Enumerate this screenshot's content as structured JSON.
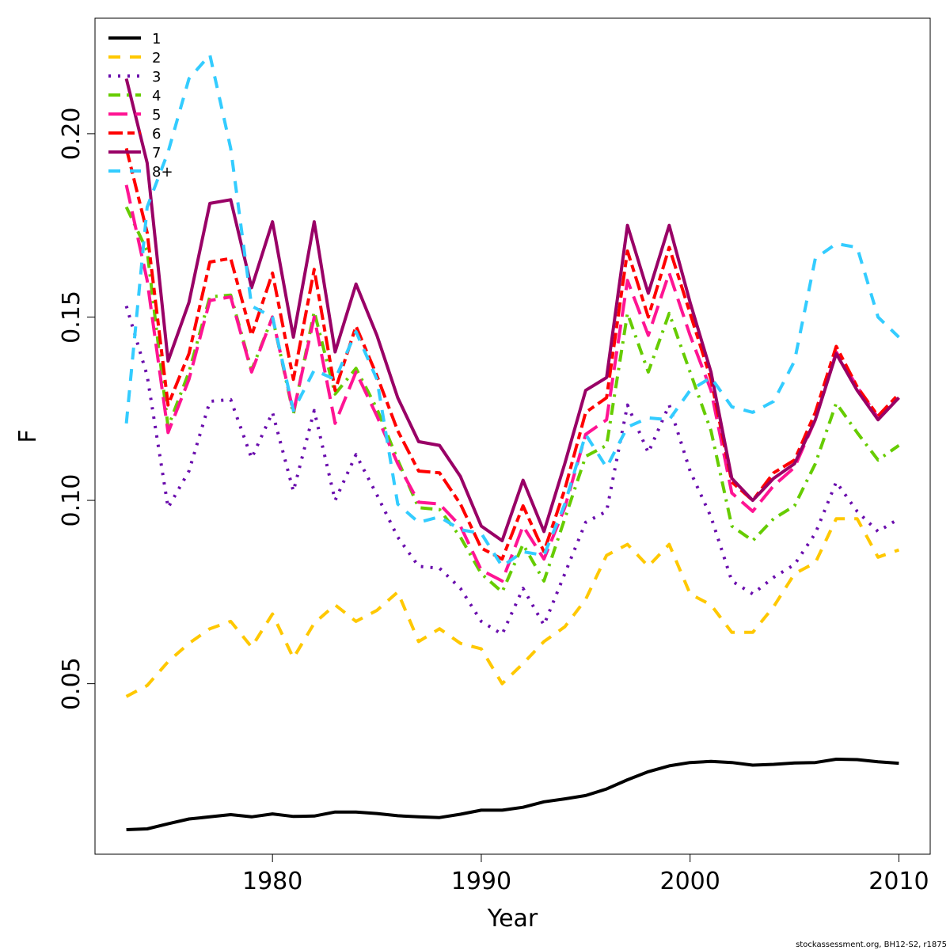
{
  "chart_data": {
    "type": "line",
    "title": "",
    "xlabel": "Year",
    "ylabel": "F",
    "xlim": [
      1971.5,
      2011.5
    ],
    "ylim": [
      0.0035,
      0.2315
    ],
    "xticks": [
      1980,
      1990,
      2000,
      2010
    ],
    "xtick_labels": [
      "1980",
      "1990",
      "2000",
      "2010"
    ],
    "yticks": [
      0.05,
      0.1,
      0.15,
      0.2
    ],
    "ytick_labels": [
      "0.05",
      "0.10",
      "0.15",
      "0.20"
    ],
    "grid": false,
    "legend_position": "top-left",
    "x": [
      1973,
      1974,
      1975,
      1976,
      1977,
      1978,
      1979,
      1980,
      1981,
      1982,
      1983,
      1984,
      1985,
      1986,
      1987,
      1988,
      1989,
      1990,
      1991,
      1992,
      1993,
      1994,
      1995,
      1996,
      1997,
      1998,
      1999,
      2000,
      2001,
      2002,
      2003,
      2004,
      2005,
      2006,
      2007,
      2008,
      2009,
      2010
    ],
    "series": [
      {
        "name": "1",
        "color": "#000000",
        "dash": "solid",
        "values": [
          0.0102,
          0.0104,
          0.0118,
          0.0131,
          0.0137,
          0.0143,
          0.0137,
          0.0145,
          0.0138,
          0.0139,
          0.015,
          0.015,
          0.0146,
          0.014,
          0.0137,
          0.0135,
          0.0144,
          0.0155,
          0.0155,
          0.0163,
          0.0178,
          0.0186,
          0.0195,
          0.0213,
          0.0238,
          0.026,
          0.0276,
          0.0285,
          0.0288,
          0.0285,
          0.0278,
          0.028,
          0.0284,
          0.0285,
          0.0294,
          0.0293,
          0.0287,
          0.0283
        ]
      },
      {
        "name": "2",
        "color": "#FFC800",
        "dash": "dash",
        "values": [
          0.0465,
          0.0495,
          0.056,
          0.061,
          0.065,
          0.067,
          0.06,
          0.069,
          0.057,
          0.0665,
          0.0715,
          0.067,
          0.07,
          0.075,
          0.0615,
          0.065,
          0.061,
          0.0595,
          0.05,
          0.0555,
          0.0615,
          0.0655,
          0.073,
          0.085,
          0.088,
          0.082,
          0.088,
          0.0745,
          0.0715,
          0.064,
          0.064,
          0.071,
          0.08,
          0.083,
          0.095,
          0.095,
          0.0845,
          0.0865
        ]
      },
      {
        "name": "3",
        "color": "#6A0DAD",
        "dash": "dot",
        "values": [
          0.153,
          0.134,
          0.098,
          0.108,
          0.127,
          0.1275,
          0.1115,
          0.124,
          0.1025,
          0.1245,
          0.1,
          0.1125,
          0.1015,
          0.09,
          0.082,
          0.0815,
          0.076,
          0.067,
          0.0635,
          0.076,
          0.066,
          0.08,
          0.094,
          0.097,
          0.126,
          0.113,
          0.126,
          0.108,
          0.0955,
          0.078,
          0.0745,
          0.079,
          0.0825,
          0.091,
          0.105,
          0.097,
          0.0915,
          0.095
        ]
      },
      {
        "name": "4",
        "color": "#66CC00",
        "dash": "dashdot",
        "values": [
          0.18,
          0.168,
          0.12,
          0.135,
          0.1555,
          0.156,
          0.1355,
          0.15,
          0.1235,
          0.1515,
          0.129,
          0.136,
          0.125,
          0.111,
          0.098,
          0.0975,
          0.09,
          0.08,
          0.075,
          0.088,
          0.078,
          0.095,
          0.112,
          0.115,
          0.151,
          0.135,
          0.151,
          0.135,
          0.119,
          0.093,
          0.089,
          0.095,
          0.0985,
          0.11,
          0.1265,
          0.1185,
          0.111,
          0.115
        ]
      },
      {
        "name": "5",
        "color": "#FF1493",
        "dash": "longdash",
        "values": [
          0.186,
          0.16,
          0.1185,
          0.133,
          0.1545,
          0.1555,
          0.135,
          0.15,
          0.124,
          0.15,
          0.121,
          0.135,
          0.123,
          0.11,
          0.0995,
          0.099,
          0.093,
          0.081,
          0.078,
          0.093,
          0.084,
          0.098,
          0.118,
          0.122,
          0.16,
          0.145,
          0.162,
          0.145,
          0.13,
          0.102,
          0.097,
          0.104,
          0.109,
          0.122,
          0.1405,
          0.131,
          0.1225,
          0.128
        ]
      },
      {
        "name": "6",
        "color": "#FF0000",
        "dash": "twodash",
        "values": [
          0.196,
          0.173,
          0.126,
          0.14,
          0.165,
          0.166,
          0.145,
          0.162,
          0.133,
          0.163,
          0.13,
          0.1475,
          0.134,
          0.119,
          0.108,
          0.1075,
          0.099,
          0.087,
          0.084,
          0.0985,
          0.086,
          0.103,
          0.124,
          0.128,
          0.168,
          0.15,
          0.169,
          0.151,
          0.133,
          0.105,
          0.1,
          0.1075,
          0.111,
          0.124,
          0.142,
          0.131,
          0.123,
          0.129
        ]
      },
      {
        "name": "7",
        "color": "#990066",
        "dash": "solid",
        "values": [
          0.215,
          0.192,
          0.138,
          0.154,
          0.181,
          0.182,
          0.158,
          0.176,
          0.1445,
          0.176,
          0.1405,
          0.159,
          0.145,
          0.128,
          0.116,
          0.115,
          0.1065,
          0.093,
          0.089,
          0.1055,
          0.0915,
          0.11,
          0.13,
          0.1335,
          0.175,
          0.1565,
          0.175,
          0.154,
          0.135,
          0.106,
          0.1,
          0.106,
          0.11,
          0.122,
          0.14,
          0.13,
          0.122,
          0.128
        ]
      },
      {
        "name": "8+",
        "color": "#33CCFF",
        "dash": "dash",
        "values": [
          0.121,
          0.18,
          0.195,
          0.215,
          0.2215,
          0.196,
          0.153,
          0.15,
          0.1245,
          0.1355,
          0.133,
          0.146,
          0.133,
          0.099,
          0.094,
          0.0955,
          0.092,
          0.091,
          0.082,
          0.086,
          0.085,
          0.099,
          0.118,
          0.109,
          0.12,
          0.1225,
          0.122,
          0.13,
          0.1335,
          0.1255,
          0.124,
          0.127,
          0.138,
          0.166,
          0.17,
          0.169,
          0.15,
          0.1445
        ]
      }
    ]
  },
  "footer": "stockassessment.org, BH12-S2, r1875"
}
